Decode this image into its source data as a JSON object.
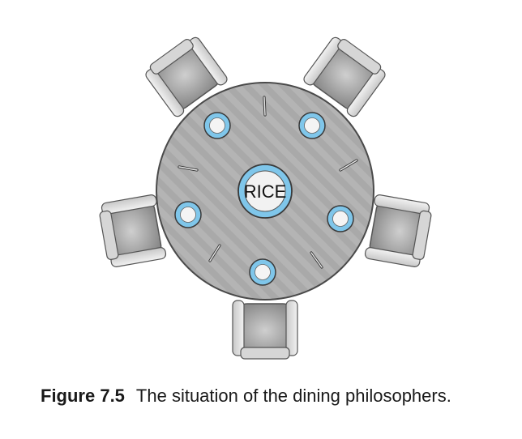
{
  "diagram": {
    "center_label": "RICE",
    "philosophers": 5,
    "chopsticks": 5,
    "plates": 5
  },
  "caption": {
    "label": "Figure 7.5",
    "text": "The situation of the dining philosophers."
  },
  "colors": {
    "table": "#a8a8a8",
    "plate_ring": "#7fc6ea",
    "chair": "#9a9a9a"
  }
}
